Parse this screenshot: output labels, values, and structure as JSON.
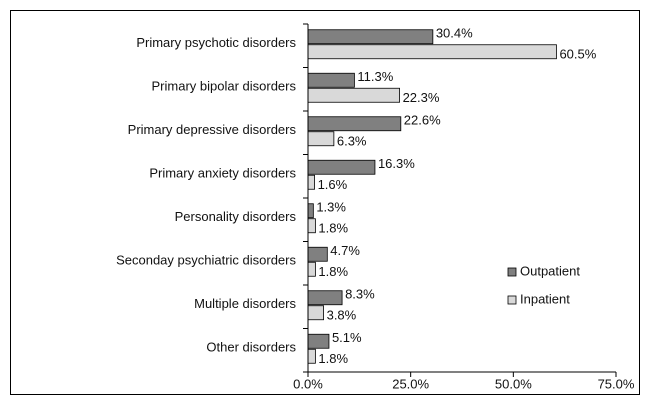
{
  "chart_data": {
    "type": "bar",
    "orientation": "horizontal",
    "categories": [
      "Primary psychotic disorders",
      "Primary bipolar disorders",
      "Primary depressive disorders",
      "Primary anxiety disorders",
      "Personality disorders",
      "Seconday psychiatric disorders",
      "Multiple disorders",
      "Other disorders"
    ],
    "series": [
      {
        "name": "Outpatient",
        "color": "#808080",
        "values": [
          30.4,
          11.3,
          22.6,
          16.3,
          1.3,
          4.7,
          8.3,
          5.1
        ],
        "value_labels": [
          "30.4%",
          "11.3%",
          "22.6%",
          "16.3%",
          "1.3%",
          "4.7%",
          "8.3%",
          "5.1%"
        ]
      },
      {
        "name": "Inpatient",
        "color": "#d9d9d9",
        "values": [
          60.5,
          22.3,
          6.3,
          1.6,
          1.8,
          1.8,
          3.8,
          1.8
        ],
        "value_labels": [
          "60.5%",
          "22.3%",
          "6.3%",
          "1.6%",
          "1.8%",
          "1.8%",
          "3.8%",
          "1.8%"
        ]
      }
    ],
    "xlim": [
      0,
      75
    ],
    "xticks": [
      {
        "value": 0,
        "label": "0.0%"
      },
      {
        "value": 25,
        "label": "25.0%"
      },
      {
        "value": 50,
        "label": "50.0%"
      },
      {
        "value": 75,
        "label": "75.0%"
      }
    ],
    "legend": "right"
  }
}
